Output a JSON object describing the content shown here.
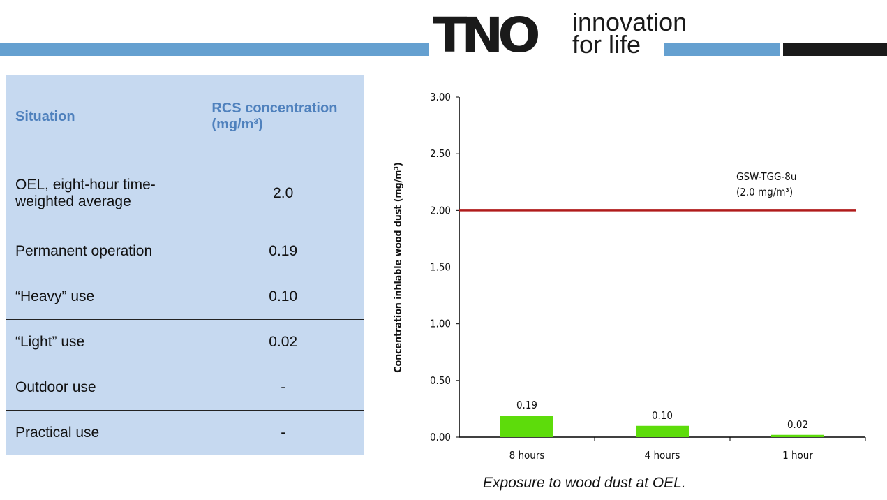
{
  "logo": {
    "text": "TNO",
    "tagline": [
      "innovation",
      "for life"
    ]
  },
  "colors": {
    "band_blue": "#65a0d0",
    "band_black": "#1a1a1a",
    "bar": "#5ddc0b",
    "limit_line": "#b01b1b",
    "table_bg": "#c6d9f0",
    "header_text": "#4f81bd"
  },
  "table": {
    "headers": [
      "Situation",
      "RCS concentration (mg/m³)"
    ],
    "rows": [
      {
        "situation": "OEL, eight-hour time-weighted average",
        "value": "2.0"
      },
      {
        "situation": "Permanent operation",
        "value": "0.19"
      },
      {
        "situation": "“Heavy” use",
        "value": "0.10"
      },
      {
        "situation": "“Light” use",
        "value": "0.02"
      },
      {
        "situation": "Outdoor use",
        "value": "-"
      },
      {
        "situation": "Practical use",
        "value": "-"
      }
    ]
  },
  "chart_data": {
    "type": "bar",
    "categories": [
      "8 hours",
      "4 hours",
      "1 hour"
    ],
    "values": [
      0.19,
      0.1,
      0.02
    ],
    "data_labels": [
      "0.19",
      "0.10",
      "0.02"
    ],
    "ylabel": "Concentration inhlable wood dust (mg/m³)",
    "xlabel": "",
    "ylim": [
      0,
      3
    ],
    "yticks": [
      "0.00",
      "0.50",
      "1.00",
      "1.50",
      "2.00",
      "2.50",
      "3.00"
    ],
    "reference_line": {
      "value": 2.0,
      "label": [
        "GSW-TGG-8u",
        "(2.0 mg/m³)"
      ]
    },
    "grid": false
  },
  "caption": "Exposure to wood dust at OEL."
}
